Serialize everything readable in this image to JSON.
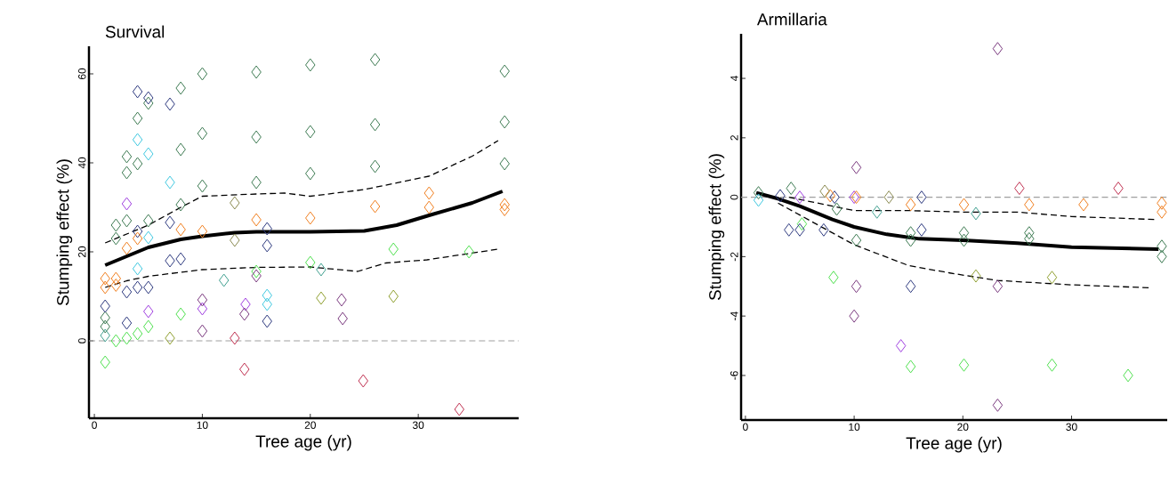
{
  "chart_data": [
    {
      "type": "scatter",
      "title": "Survival",
      "xlabel": "Tree age (yr)",
      "ylabel": "Stumping effect (%)",
      "xlim": [
        -0.5,
        39.3
      ],
      "ylim": [
        -17.4,
        66.2
      ],
      "xticks": [
        0,
        10,
        20,
        30
      ],
      "yticks": [
        0,
        20,
        40,
        60
      ],
      "marker": "diamond",
      "ref_lines": [
        {
          "axis": "y",
          "value": 0,
          "color": "#a0a0a0",
          "line_style": "dashed"
        }
      ],
      "series": [
        {
          "color": "#3d7a52",
          "x": [
            10,
            15,
            8,
            5,
            4,
            10,
            15,
            8,
            3,
            4,
            3,
            10,
            15,
            8,
            2,
            3,
            5,
            2,
            1,
            1,
            20,
            26,
            38,
            20,
            26,
            38,
            20,
            26,
            38
          ],
          "values": [
            60,
            60.4,
            56.8,
            53.4,
            50,
            46.6,
            45.8,
            43,
            41.4,
            39.8,
            37.8,
            34.8,
            35.6,
            30.6,
            26,
            27,
            27,
            23,
            5.2,
            3.2,
            62,
            63.2,
            60.6,
            47,
            48.6,
            49.2,
            37.6,
            39.2,
            39.8
          ]
        },
        {
          "color": "#2e3a80",
          "x": [
            4,
            5,
            7,
            16,
            16,
            3,
            4,
            5,
            7,
            8,
            1,
            3,
            16,
            4,
            7
          ],
          "values": [
            56,
            54.6,
            53.2,
            25.2,
            21.4,
            11,
            12,
            12,
            18,
            18.4,
            7.8,
            4,
            4.4,
            24.6,
            26.6
          ]
        },
        {
          "color": "#f07f20",
          "x": [
            8,
            10,
            15,
            20,
            26,
            31,
            31,
            38,
            38,
            1,
            2,
            1,
            2,
            3,
            4
          ],
          "values": [
            25,
            24.6,
            27.2,
            27.6,
            30.2,
            33.2,
            30,
            30.6,
            29.5,
            14,
            14,
            12,
            12.5,
            20.8,
            23
          ]
        },
        {
          "color": "#50e050",
          "x": [
            8,
            5,
            4,
            2,
            3,
            1,
            15,
            20,
            27.7,
            34.7
          ],
          "values": [
            6,
            3.2,
            1.6,
            0,
            0.6,
            -4.8,
            15.6,
            17.6,
            20.6,
            20
          ]
        },
        {
          "color": "#40c8e0",
          "x": [
            4,
            5,
            7,
            4,
            16,
            16,
            5
          ],
          "values": [
            45.2,
            42,
            35.6,
            16.2,
            10.2,
            8.2,
            23.2
          ]
        },
        {
          "color": "#40a090",
          "x": [
            12,
            21,
            1
          ],
          "values": [
            13.6,
            16,
            1.2
          ]
        },
        {
          "color": "#a040e0",
          "x": [
            3,
            5,
            10,
            14
          ],
          "values": [
            30.8,
            6.6,
            7.2,
            8.2
          ]
        },
        {
          "color": "#7a3a80",
          "x": [
            10,
            10,
            13.9,
            22.9,
            23,
            15
          ],
          "values": [
            9.2,
            2.2,
            6,
            9.2,
            5,
            14.6
          ]
        },
        {
          "color": "#c03050",
          "x": [
            13,
            13.9,
            24.9,
            33.8
          ],
          "values": [
            0.6,
            -6.4,
            -9,
            -15.4
          ]
        },
        {
          "color": "#90a030",
          "x": [
            7,
            21,
            27.7
          ],
          "values": [
            0.6,
            9.6,
            10
          ]
        },
        {
          "color": "#8a8a50",
          "x": [
            13,
            13
          ],
          "values": [
            31,
            22.6
          ]
        },
        {
          "type": "line",
          "marker": "none",
          "color": "#000000",
          "line_style": "solid",
          "x": [
            1,
            3,
            5,
            8,
            10,
            13,
            15,
            20,
            25,
            28,
            31,
            35,
            37.8
          ],
          "values": [
            17,
            19,
            21,
            22.8,
            23.5,
            24.3,
            24.5,
            24.5,
            24.7,
            26,
            28.2,
            31,
            33.6
          ]
        },
        {
          "type": "line",
          "marker": "none",
          "color": "#000000",
          "line_style": "dashed",
          "x": [
            1,
            3,
            5,
            8,
            10,
            15,
            17.6,
            20,
            25,
            31,
            35,
            37.4
          ],
          "values": [
            22,
            24,
            26,
            30,
            32.5,
            33,
            33.2,
            32.5,
            34,
            37,
            41.5,
            45
          ]
        },
        {
          "type": "line",
          "marker": "none",
          "color": "#000000",
          "line_style": "dashed",
          "x": [
            1,
            3,
            5,
            10,
            15,
            20,
            24.4,
            27,
            30.8,
            37.4
          ],
          "values": [
            12,
            13.5,
            14.5,
            16,
            16.5,
            16.6,
            15.6,
            17.5,
            18.2,
            20.6
          ]
        }
      ]
    },
    {
      "type": "scatter",
      "title": "Armillaria",
      "xlabel": "Tree age (yr)",
      "ylabel": "Stumping effect (%)",
      "xlim": [
        -0.4,
        38.8
      ],
      "ylim": [
        -7.5,
        5.5
      ],
      "xticks": [
        0,
        10,
        20,
        30
      ],
      "yticks": [
        -6,
        -4,
        -2,
        0,
        2,
        4
      ],
      "marker": "diamond",
      "ref_lines": [
        {
          "axis": "y",
          "value": 0,
          "color": "#a0a0a0",
          "line_style": "dashed"
        }
      ],
      "series": [
        {
          "color": "#7a3a80",
          "x": [
            23.2,
            10.2,
            10.2,
            10,
            23.2,
            23.2
          ],
          "values": [
            5.0,
            1.0,
            -3.0,
            -4.0,
            -3.0,
            -7.0
          ]
        },
        {
          "color": "#50e050",
          "x": [
            8.1,
            15.2,
            20.1,
            28.2,
            35.2,
            5.2
          ],
          "values": [
            -2.7,
            -5.7,
            -5.65,
            -5.65,
            -6.0,
            -0.9
          ]
        },
        {
          "color": "#a040e0",
          "x": [
            14.3,
            5,
            10
          ],
          "values": [
            -5.0,
            0,
            0
          ]
        },
        {
          "color": "#2e3a80",
          "x": [
            4,
            5,
            7.2,
            16.2,
            16.2,
            15.2,
            8.2,
            3.2
          ],
          "values": [
            -1.1,
            -1.1,
            -1.1,
            -1.1,
            0,
            -3.0,
            0,
            0.05
          ]
        },
        {
          "color": "#3d7a52",
          "x": [
            1.2,
            4.2,
            8.4,
            10.2,
            15.2,
            15.2,
            20.1,
            20.1,
            26.1,
            26.1,
            38.3,
            38.3
          ],
          "values": [
            0.15,
            0.3,
            -0.4,
            -1.45,
            -1.45,
            -1.2,
            -1.2,
            -1.45,
            -1.2,
            -1.4,
            -1.65,
            -2.0
          ]
        },
        {
          "color": "#f07f20",
          "x": [
            10.2,
            15.2,
            20.1,
            26.1,
            31.1,
            38.3,
            38.3,
            7.8
          ],
          "values": [
            0,
            -0.25,
            -0.25,
            -0.25,
            -0.25,
            -0.2,
            -0.5,
            0.05
          ]
        },
        {
          "color": "#40c8e0",
          "x": [
            1.2
          ],
          "values": [
            -0.1
          ]
        },
        {
          "color": "#40a090",
          "x": [
            12.1,
            21.2
          ],
          "values": [
            -0.5,
            -0.55
          ]
        },
        {
          "color": "#8a8a50",
          "x": [
            13.2,
            7.3
          ],
          "values": [
            0,
            0.2
          ]
        },
        {
          "color": "#90a030",
          "x": [
            21.2,
            28.2
          ],
          "values": [
            -2.65,
            -2.7
          ]
        },
        {
          "color": "#c03050",
          "x": [
            25.2,
            34.3
          ],
          "values": [
            0.3,
            0.3
          ]
        },
        {
          "type": "line",
          "marker": "none",
          "color": "#000000",
          "line_style": "solid",
          "x": [
            1,
            3,
            5,
            8,
            10,
            13,
            16,
            20,
            25,
            30,
            38
          ],
          "values": [
            0.15,
            -0.05,
            -0.3,
            -0.75,
            -1.0,
            -1.25,
            -1.4,
            -1.45,
            -1.55,
            -1.68,
            -1.75
          ]
        },
        {
          "type": "line",
          "marker": "none",
          "color": "#000000",
          "line_style": "dashed",
          "x": [
            4,
            8,
            10,
            15,
            20,
            25,
            30,
            37.6
          ],
          "values": [
            0,
            -0.3,
            -0.45,
            -0.45,
            -0.5,
            -0.5,
            -0.65,
            -0.75
          ]
        },
        {
          "type": "line",
          "marker": "none",
          "color": "#000000",
          "line_style": "dashed",
          "x": [
            3,
            5,
            8,
            10,
            15,
            18.8,
            23.1,
            30,
            37.3
          ],
          "values": [
            -0.2,
            -0.6,
            -1.2,
            -1.6,
            -2.3,
            -2.55,
            -2.8,
            -2.95,
            -3.05
          ]
        }
      ]
    }
  ]
}
